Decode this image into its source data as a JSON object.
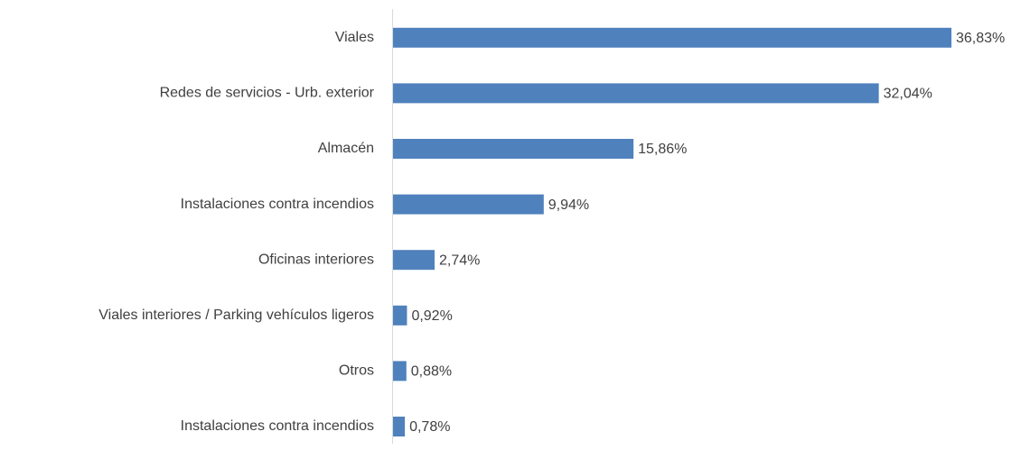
{
  "chart_data": {
    "type": "barh",
    "categories": [
      "Viales",
      "Redes de servicios - Urb. exterior",
      "Almacén",
      "Instalaciones contra incendios",
      "Oficinas interiores",
      "Viales interiores / Parking vehículos ligeros",
      "Otros",
      "Instalaciones contra incendios"
    ],
    "values": [
      36.83,
      32.04,
      15.86,
      9.94,
      2.74,
      0.92,
      0.88,
      0.78
    ],
    "value_labels": [
      "36,83%",
      "32,04%",
      "15,86%",
      "9,94%",
      "2,74%",
      "0,92%",
      "0,88%",
      "0,78%"
    ],
    "color": "#4f81bd",
    "xlim": [
      0,
      40
    ]
  }
}
